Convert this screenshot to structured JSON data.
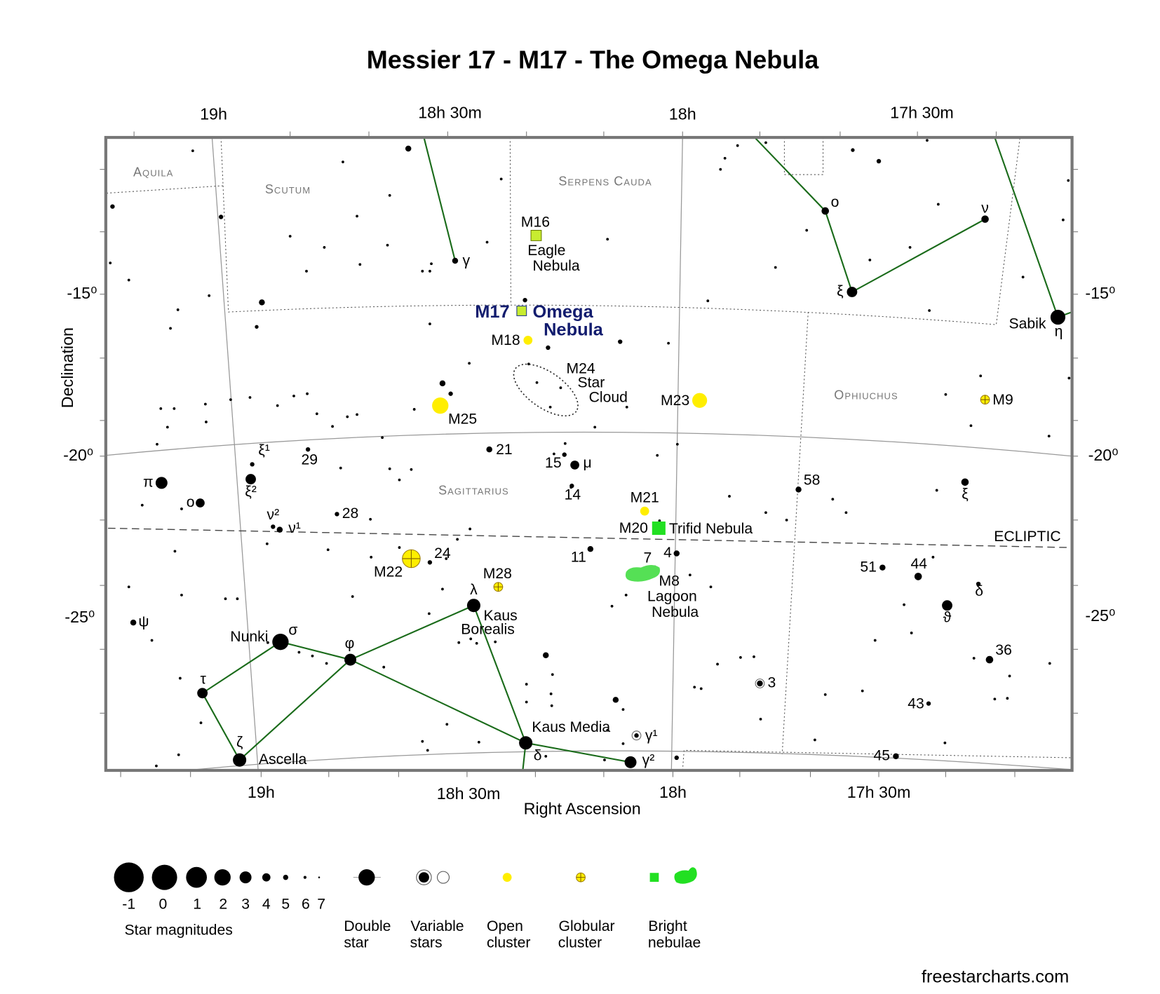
{
  "title": "Messier 17 - M17 - The Omega Nebula",
  "axes": {
    "top": [
      "19h",
      "18h 30m",
      "18h",
      "17h 30m"
    ],
    "bottom": [
      "19h",
      "18h 30m",
      "18h",
      "17h 30m"
    ],
    "left": [
      "-15⁰",
      "-20⁰",
      "-25⁰"
    ],
    "right": [
      "-15⁰",
      "-20⁰",
      "-25⁰"
    ],
    "x_label": "Right Ascension",
    "y_label": "Declination"
  },
  "constellations": [
    "Aquila",
    "Scutum",
    "Serpens Cauda",
    "Ophiuchus",
    "Sagittarius"
  ],
  "ecliptic": "ECLIPTIC",
  "deep_sky": [
    {
      "name": "M16",
      "lines": [
        "Eagle",
        "Nebula"
      ]
    },
    {
      "name": "M17",
      "lines": [
        "Omega",
        "Nebula"
      ]
    },
    {
      "name": "M18"
    },
    {
      "name": "M24",
      "lines": [
        "Star",
        "Cloud"
      ]
    },
    {
      "name": "M23"
    },
    {
      "name": "M9"
    },
    {
      "name": "M25"
    },
    {
      "name": "M21"
    },
    {
      "name": "M20",
      "lines": [
        "Trifid Nebula"
      ]
    },
    {
      "name": "M8",
      "lines": [
        "Lagoon",
        "Nebula"
      ]
    },
    {
      "name": "M22"
    },
    {
      "name": "M28"
    }
  ],
  "star_labels": [
    "γ",
    "ο",
    "ν",
    "ξ",
    "Sabik",
    "η",
    "ξ¹",
    "29",
    "ξ²",
    "π",
    "ο",
    "ν²",
    "ν¹",
    "28",
    "21",
    "15",
    "μ",
    "14",
    "58",
    "ξ",
    "24",
    "11",
    "7",
    "4",
    "51",
    "44",
    "δ",
    "ϑ",
    "ψ",
    "Nunki",
    "σ",
    "λ",
    "Kaus",
    "Borealis",
    "φ",
    "τ",
    "36",
    "3",
    "43",
    "ζ",
    "Kaus Media",
    "γ¹",
    "Ascella",
    "δ",
    "γ²",
    "45"
  ],
  "legend": {
    "magnitudes": [
      "-1",
      "0",
      "1",
      "2",
      "3",
      "4",
      "5",
      "6",
      "7"
    ],
    "magnitudes_title": "Star magnitudes",
    "items": [
      {
        "lines": [
          "Double",
          "star"
        ]
      },
      {
        "lines": [
          "Variable",
          "stars"
        ]
      },
      {
        "lines": [
          "Open",
          "cluster"
        ]
      },
      {
        "lines": [
          "Globular",
          "cluster"
        ]
      },
      {
        "lines": [
          "Bright",
          "nebulae"
        ]
      }
    ]
  },
  "credit": "freestarcharts.com"
}
